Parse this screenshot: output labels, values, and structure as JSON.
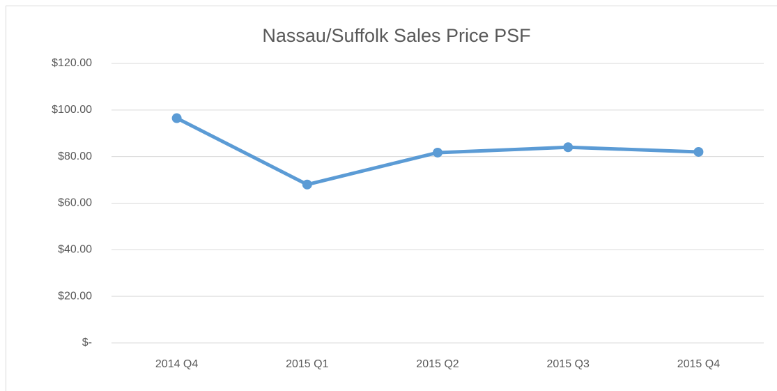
{
  "chart_data": {
    "type": "line",
    "title": "Nassau/Suffolk Sales Price PSF",
    "categories": [
      "2014 Q4",
      "2015 Q1",
      "2015 Q2",
      "2015 Q3",
      "2015 Q4"
    ],
    "series": [
      {
        "name": "Sales Price PSF",
        "color": "#5b9bd5",
        "values": [
          96.5,
          68,
          81.7,
          84,
          82
        ]
      }
    ],
    "ylim": [
      0,
      120
    ],
    "yticks": [
      {
        "value": 0,
        "label": "$-"
      },
      {
        "value": 20,
        "label": "$20.00"
      },
      {
        "value": 40,
        "label": "$40.00"
      },
      {
        "value": 60,
        "label": "$60.00"
      },
      {
        "value": 80,
        "label": "$80.00"
      },
      {
        "value": 100,
        "label": "$100.00"
      },
      {
        "value": 120,
        "label": "$120.00"
      }
    ],
    "grid": true
  }
}
